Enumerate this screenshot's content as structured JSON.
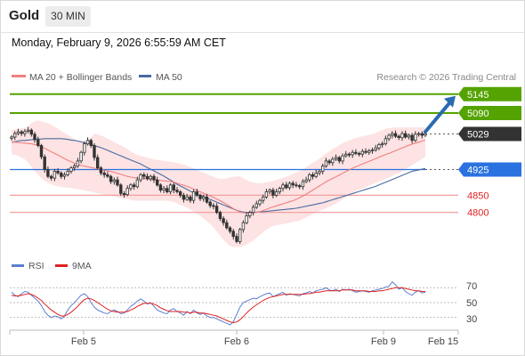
{
  "header": {
    "symbol": "Gold",
    "timeframe": "30 MIN",
    "datetime": "Monday, February 9, 2026 6:55:59 AM CET"
  },
  "colors": {
    "up_candle": "#ffffff",
    "down_candle": "#333333",
    "candle_outline": "#333333",
    "ma20": "#f07f7f",
    "bollinger_fill": "#fde3e3",
    "ma50": "#4a6aa0",
    "resistance": "#54a300",
    "current": "#333333",
    "pivot": "#2a72e0",
    "support": "#f4a0a0",
    "support_text": "#e12424",
    "arrow": "#2a6bb0",
    "rsi": "#5b7fd0",
    "rsi_ma": "#e02020"
  },
  "chart_data": [
    {
      "type": "candlestick",
      "title": "",
      "legend": [
        {
          "name": "MA 20 + Bollinger Bands",
          "color": "#f07f7f"
        },
        {
          "name": "MA 50",
          "color": "#4a6aa0"
        }
      ],
      "legend_position": "top-left",
      "credit": "Research © 2026 Trading Central",
      "y_range": [
        4690,
        5160
      ],
      "x_ticks": [
        "Feb 5",
        "Feb 6",
        "Feb 9",
        "Feb 15"
      ],
      "levels": [
        {
          "value": 5145,
          "label": "5145",
          "kind": "resistance"
        },
        {
          "value": 5090,
          "label": "5090",
          "kind": "resistance"
        },
        {
          "value": 5029,
          "label": "5029",
          "kind": "current"
        },
        {
          "value": 4925,
          "label": "4925",
          "kind": "pivot"
        },
        {
          "value": 4850,
          "label": "4850",
          "kind": "support"
        },
        {
          "value": 4800,
          "label": "4800",
          "kind": "support"
        }
      ],
      "close": [
        5020,
        5030,
        5035,
        5030,
        5036,
        5040,
        5028,
        5012,
        4995,
        4962,
        4925,
        4905,
        4900,
        4920,
        4915,
        4905,
        4910,
        4920,
        4930,
        4935,
        4950,
        4975,
        5000,
        5010,
        4995,
        4960,
        4930,
        4915,
        4910,
        4905,
        4890,
        4895,
        4880,
        4855,
        4852,
        4870,
        4880,
        4875,
        4895,
        4910,
        4905,
        4898,
        4905,
        4895,
        4880,
        4865,
        4870,
        4860,
        4880,
        4865,
        4860,
        4850,
        4838,
        4845,
        4835,
        4860,
        4850,
        4840,
        4845,
        4830,
        4820,
        4818,
        4800,
        4782,
        4770,
        4755,
        4745,
        4730,
        4715,
        4750,
        4770,
        4790,
        4800,
        4815,
        4825,
        4835,
        4845,
        4860,
        4865,
        4850,
        4860,
        4870,
        4880,
        4872,
        4885,
        4880,
        4878,
        4875,
        4890,
        4895,
        4910,
        4905,
        4915,
        4920,
        4935,
        4950,
        4945,
        4955,
        4960,
        4950,
        4965,
        4970,
        4968,
        4975,
        4972,
        4970,
        4978,
        4975,
        4980,
        4982,
        4988,
        4998,
        5000,
        5015,
        5025,
        5030,
        5022,
        5018,
        5030,
        5020,
        5025,
        5010,
        5028,
        5030,
        5025,
        5029
      ],
      "ma20": [
        5005,
        5005,
        5004,
        5003,
        5002,
        5001,
        5000,
        4998,
        4996,
        4992,
        4987,
        4982,
        4977,
        4972,
        4967,
        4962,
        4957,
        4952,
        4948,
        4944,
        4940,
        4937,
        4935,
        4933,
        4931,
        4929,
        4927,
        4925,
        4923,
        4921,
        4919,
        4917,
        4914,
        4911,
        4908,
        4905,
        4903,
        4901,
        4900,
        4899,
        4899,
        4898,
        4897,
        4895,
        4894,
        4893,
        4892,
        4891,
        4890,
        4888,
        4885,
        4882,
        4879,
        4876,
        4872,
        4868,
        4864,
        4860,
        4856,
        4852,
        4848,
        4844,
        4839,
        4834,
        4829,
        4823,
        4817,
        4811,
        4806,
        4801,
        4799,
        4798,
        4798,
        4799,
        4800,
        4802,
        4805,
        4809,
        4813,
        4816,
        4819,
        4822,
        4825,
        4828,
        4831,
        4834,
        4838,
        4843,
        4848,
        4853,
        4859,
        4865,
        4871,
        4877,
        4883,
        4889,
        4894,
        4899,
        4904,
        4909,
        4914,
        4919,
        4924,
        4929,
        4933,
        4937,
        4941,
        4945,
        4949,
        4953,
        4957,
        4961,
        4965,
        4969,
        4972,
        4976,
        4980,
        4984,
        4988,
        4992,
        4996,
        4999,
        5002,
        5005,
        5008,
        5011
      ],
      "bb_upper": [
        5040,
        5042,
        5044,
        5045,
        5046,
        5052,
        5060,
        5066,
        5068,
        5066,
        5063,
        5060,
        5055,
        5050,
        5044,
        5038,
        5032,
        5026,
        5020,
        5014,
        5010,
        5008,
        5008,
        5012,
        5018,
        5030,
        5028,
        5024,
        5020,
        5015,
        5010,
        5005,
        5000,
        4995,
        4990,
        4985,
        4978,
        4972,
        4968,
        4965,
        4963,
        4960,
        4957,
        4955,
        4953,
        4952,
        4950,
        4949,
        4948,
        4946,
        4944,
        4942,
        4940,
        4936,
        4932,
        4928,
        4924,
        4920,
        4916,
        4912,
        4908,
        4904,
        4900,
        4898,
        4898,
        4900,
        4902,
        4904,
        4905,
        4905,
        4900,
        4895,
        4890,
        4887,
        4886,
        4885,
        4886,
        4888,
        4890,
        4892,
        4895,
        4898,
        4901,
        4904,
        4908,
        4912,
        4916,
        4920,
        4926,
        4932,
        4938,
        4945,
        4950,
        4957,
        4965,
        4972,
        4978,
        4985,
        4990,
        4996,
        5002,
        5006,
        5010,
        5014,
        5017,
        5020,
        5022,
        5024,
        5026,
        5028,
        5032,
        5036,
        5040,
        5044,
        5046,
        5047,
        5048,
        5048,
        5048,
        5048,
        5048,
        5048,
        5048,
        5048,
        5048,
        5048
      ],
      "bb_lower": [
        4970,
        4968,
        4965,
        4960,
        4955,
        4945,
        4932,
        4920,
        4910,
        4900,
        4892,
        4886,
        4882,
        4878,
        4876,
        4874,
        4873,
        4872,
        4871,
        4870,
        4868,
        4866,
        4864,
        4862,
        4860,
        4858,
        4856,
        4854,
        4852,
        4850,
        4848,
        4846,
        4844,
        4842,
        4840,
        4838,
        4836,
        4835,
        4834,
        4834,
        4834,
        4834,
        4834,
        4834,
        4834,
        4834,
        4834,
        4834,
        4833,
        4830,
        4826,
        4822,
        4818,
        4814,
        4808,
        4802,
        4796,
        4790,
        4782,
        4774,
        4766,
        4756,
        4744,
        4732,
        4720,
        4710,
        4702,
        4698,
        4698,
        4700,
        4702,
        4706,
        4712,
        4718,
        4726,
        4734,
        4742,
        4750,
        4756,
        4760,
        4762,
        4764,
        4766,
        4768,
        4770,
        4772,
        4774,
        4776,
        4780,
        4785,
        4790,
        4795,
        4800,
        4804,
        4808,
        4812,
        4816,
        4820,
        4826,
        4832,
        4838,
        4844,
        4850,
        4856,
        4862,
        4866,
        4870,
        4874,
        4878,
        4882,
        4886,
        4890,
        4894,
        4898,
        4902,
        4906,
        4910,
        4914,
        4920,
        4926,
        4932,
        4938,
        4944,
        4950,
        4956,
        4962
      ],
      "ma50": [
        5005,
        5006,
        5008,
        5010,
        5010,
        5011,
        5012,
        5013,
        5014,
        5014,
        5015,
        5015,
        5015,
        5015,
        5015,
        5015,
        5014,
        5013,
        5011,
        5010,
        5008,
        5006,
        5003,
        5001,
        4998,
        4995,
        4992,
        4989,
        4985,
        4981,
        4977,
        4973,
        4969,
        4965,
        4961,
        4957,
        4953,
        4949,
        4945,
        4941,
        4936,
        4931,
        4926,
        4921,
        4916,
        4911,
        4906,
        4900,
        4894,
        4888,
        4882,
        4877,
        4872,
        4867,
        4862,
        4857,
        4853,
        4849,
        4846,
        4842,
        4838,
        4834,
        4830,
        4826,
        4822,
        4818,
        4814,
        4810,
        4806,
        4803,
        4801,
        4800,
        4800,
        4800,
        4801,
        4802,
        4802,
        4803,
        4804,
        4805,
        4806,
        4807,
        4808,
        4809,
        4810,
        4811,
        4812,
        4814,
        4816,
        4818,
        4820,
        4822,
        4824,
        4826,
        4828,
        4831,
        4834,
        4837,
        4840,
        4843,
        4846,
        4849,
        4852,
        4855,
        4858,
        4861,
        4864,
        4867,
        4870,
        4873,
        4876,
        4880,
        4884,
        4888,
        4892,
        4896,
        4900,
        4904,
        4908,
        4912,
        4916,
        4920,
        4922,
        4924,
        4926,
        4928
      ]
    },
    {
      "type": "line",
      "title": "",
      "legend": [
        {
          "name": "RSI",
          "color": "#5b7fd0"
        },
        {
          "name": "9MA",
          "color": "#e02020"
        }
      ],
      "y_range": [
        20,
        80
      ],
      "y_ticks": [
        "70",
        "50",
        "30"
      ],
      "series": [
        {
          "name": "RSI",
          "values": [
            64,
            60,
            58,
            62,
            65,
            64,
            60,
            56,
            52,
            46,
            38,
            33,
            30,
            32,
            31,
            28,
            32,
            40,
            46,
            50,
            55,
            60,
            62,
            58,
            50,
            44,
            40,
            38,
            36,
            35,
            38,
            40,
            38,
            35,
            36,
            40,
            45,
            48,
            52,
            55,
            52,
            48,
            50,
            45,
            40,
            38,
            36,
            35,
            40,
            42,
            38,
            36,
            33,
            38,
            35,
            40,
            36,
            34,
            36,
            32,
            30,
            30,
            28,
            26,
            24,
            22,
            20,
            24,
            34,
            44,
            50,
            52,
            54,
            56,
            55,
            58,
            60,
            62,
            63,
            58,
            60,
            62,
            64,
            60,
            62,
            61,
            60,
            59,
            62,
            63,
            65,
            63,
            66,
            67,
            68,
            70,
            67,
            66,
            68,
            65,
            68,
            67,
            68,
            66,
            64,
            65,
            66,
            65,
            64,
            66,
            67,
            68,
            69,
            71,
            72,
            78,
            74,
            68,
            70,
            65,
            62,
            60,
            64,
            66,
            63,
            64
          ]
        },
        {
          "name": "9MA",
          "values": [
            60,
            59,
            59,
            60,
            61,
            62,
            61,
            59,
            56,
            53,
            48,
            44,
            40,
            37,
            34,
            32,
            32,
            34,
            37,
            41,
            45,
            50,
            54,
            56,
            55,
            53,
            50,
            47,
            44,
            41,
            39,
            38,
            37,
            37,
            37,
            38,
            40,
            42,
            45,
            47,
            49,
            49,
            49,
            48,
            46,
            43,
            41,
            39,
            38,
            38,
            38,
            38,
            37,
            37,
            36,
            37,
            37,
            36,
            36,
            35,
            34,
            33,
            32,
            30,
            28,
            26,
            24,
            23,
            24,
            27,
            31,
            36,
            40,
            44,
            47,
            50,
            53,
            55,
            57,
            58,
            59,
            60,
            61,
            61,
            61,
            61,
            61,
            61,
            61,
            62,
            62,
            63,
            64,
            64,
            65,
            66,
            66,
            66,
            66,
            66,
            67,
            67,
            67,
            67,
            66,
            66,
            66,
            66,
            65,
            65,
            65,
            66,
            66,
            67,
            68,
            69,
            70,
            70,
            70,
            69,
            68,
            67,
            66,
            66,
            65,
            65
          ]
        }
      ]
    }
  ]
}
